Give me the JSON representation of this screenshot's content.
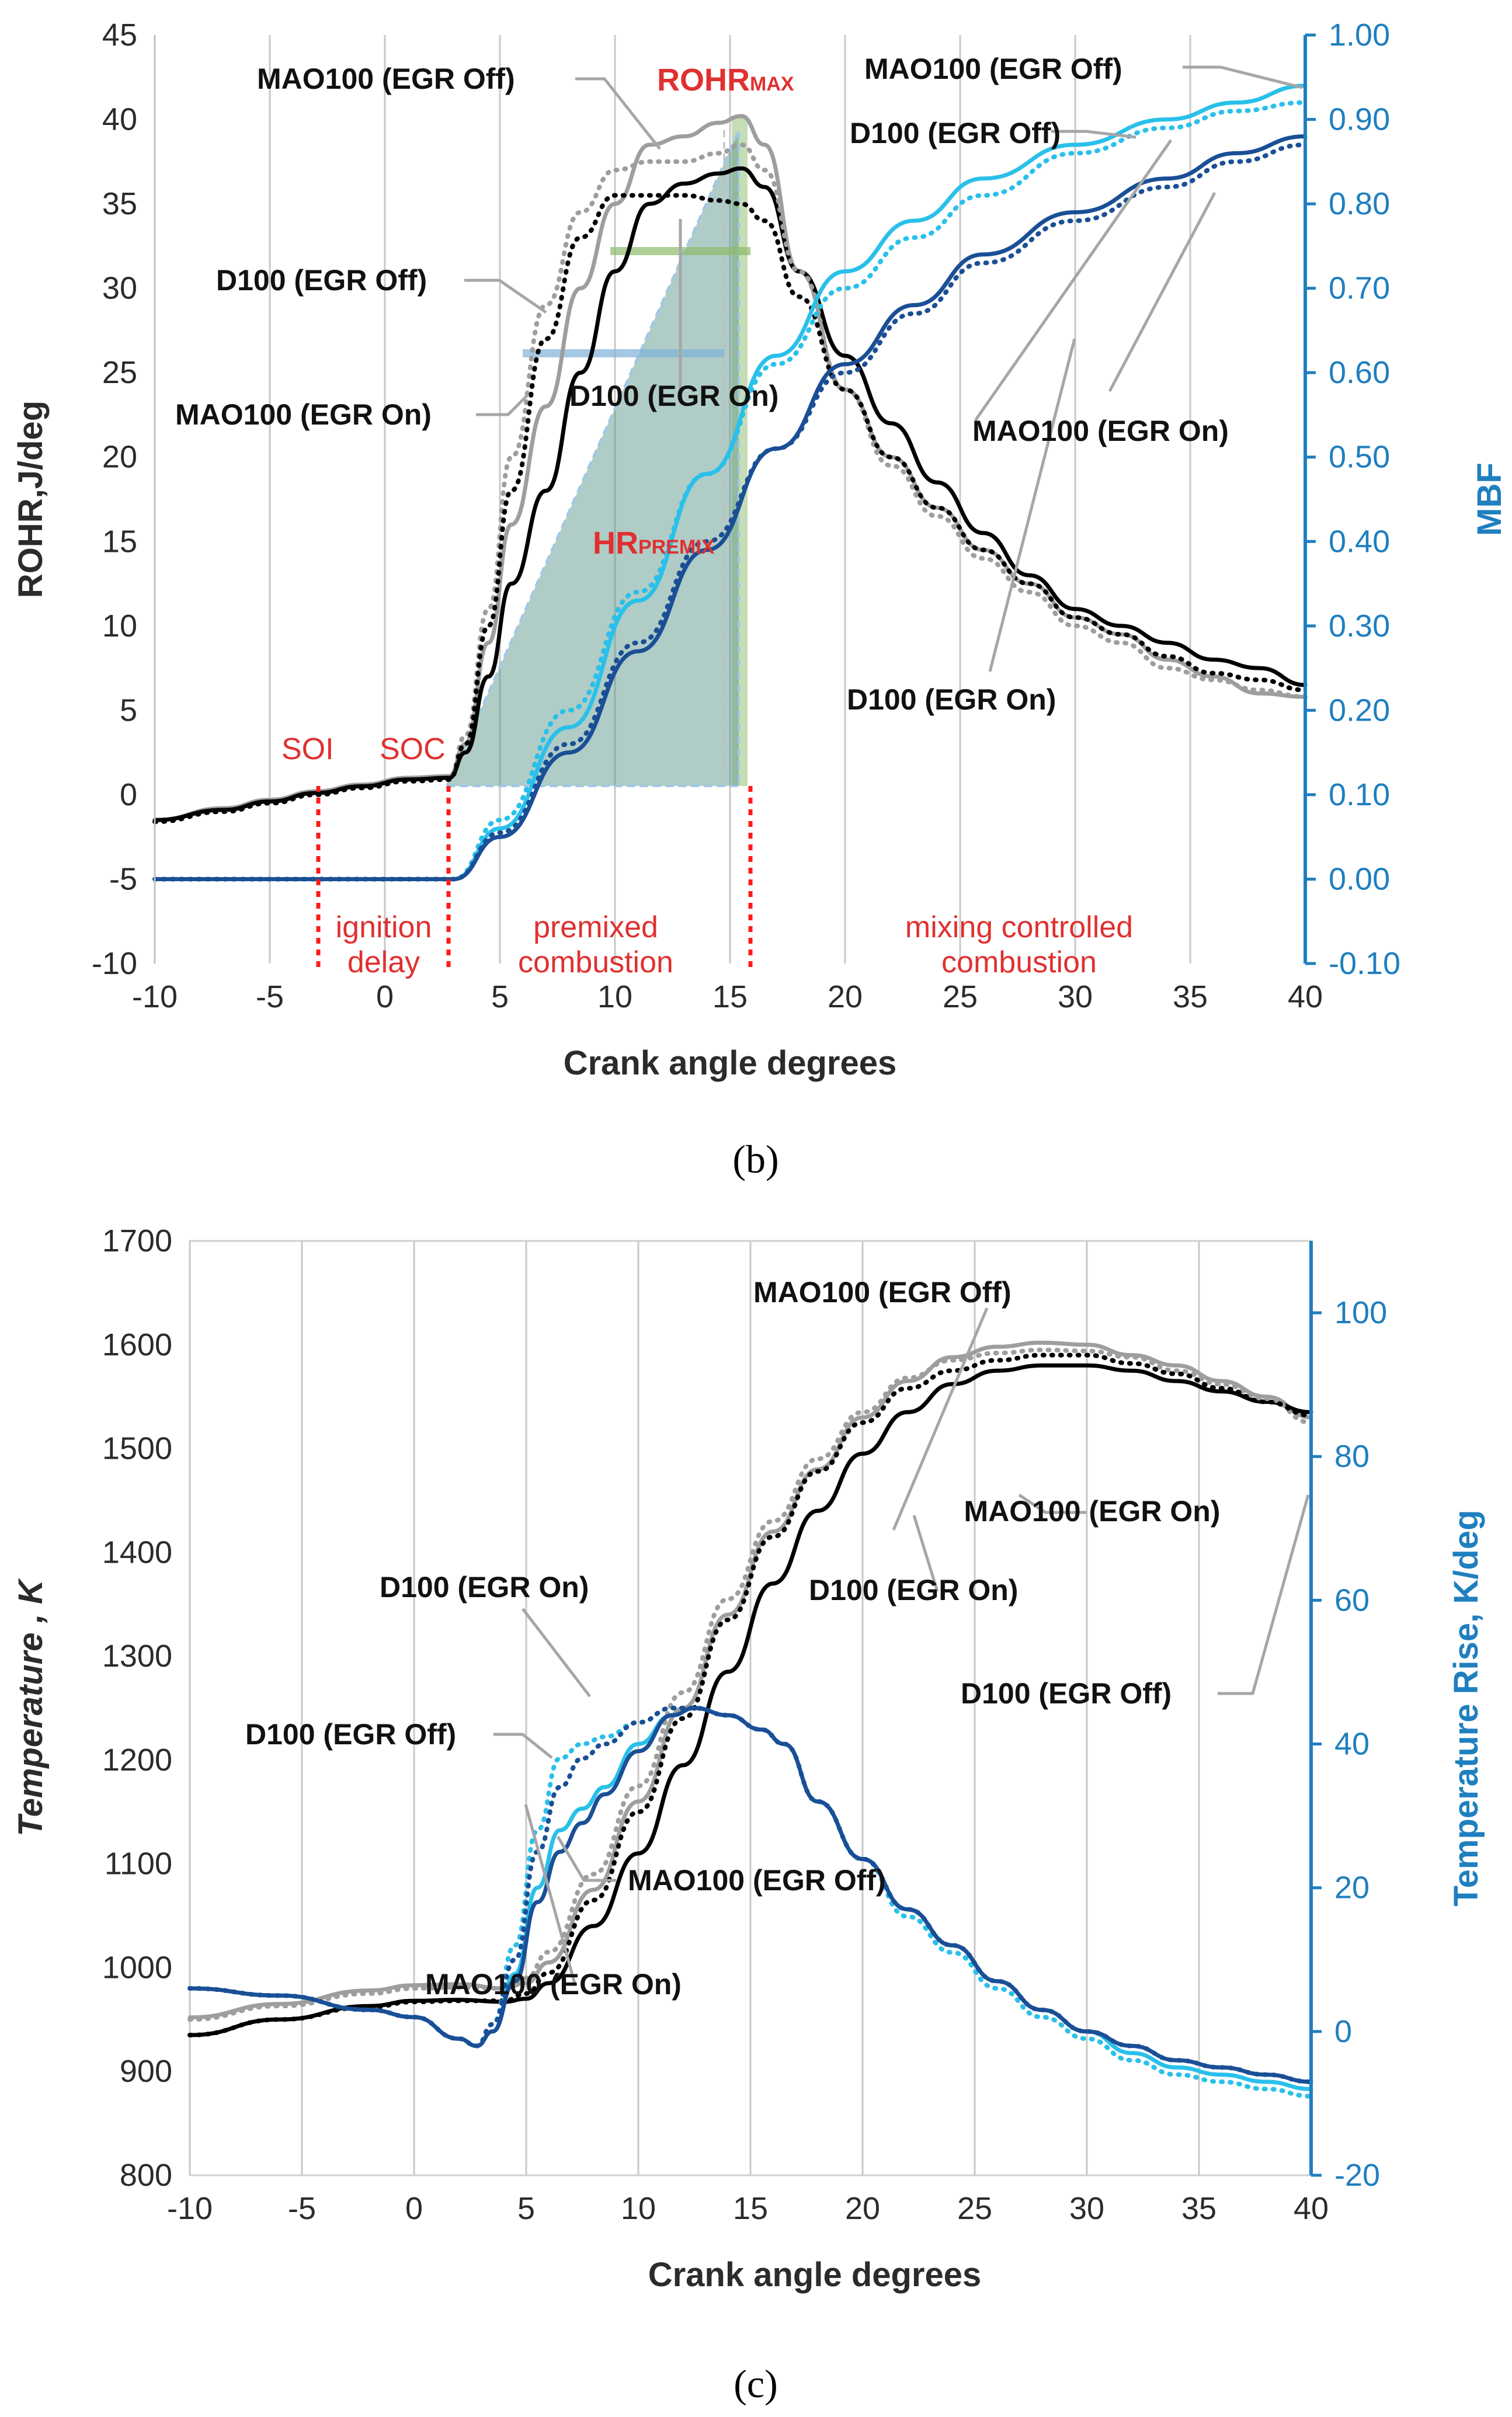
{
  "chart_data": [
    {
      "panel_label": "(b)",
      "type": "line",
      "xlabel": "Crank angle degrees",
      "ylabel": "ROHR,J/deg",
      "y2label": "MBF",
      "xlim": [
        -10,
        40
      ],
      "ylim": [
        -10,
        45
      ],
      "y2lim": [
        -0.1,
        1.0
      ],
      "x_ticks": [
        "-10",
        "-5",
        "0",
        "5",
        "10",
        "15",
        "20",
        "25",
        "30",
        "35",
        "40"
      ],
      "y_ticks": [
        "-10",
        "-5",
        "0",
        "5",
        "10",
        "15",
        "20",
        "25",
        "30",
        "35",
        "40",
        "45"
      ],
      "y2_ticks": [
        "-0.10",
        "0.00",
        "0.10",
        "0.20",
        "0.30",
        "0.40",
        "0.50",
        "0.60",
        "0.70",
        "0.80",
        "0.90",
        "1.00"
      ],
      "grid": "vertical",
      "series": [
        {
          "key": "rohr_mao_off",
          "axis": "y",
          "color": "#9e9e9e",
          "dash": "solid",
          "x": [
            -10,
            -7,
            -5,
            -3,
            -1,
            1,
            2.8,
            3.5,
            4.5,
            5.5,
            7,
            8.5,
            10,
            11.5,
            13,
            14.5,
            15.5,
            16.5,
            18,
            20,
            22,
            24,
            26,
            28,
            30,
            32,
            34,
            36,
            38,
            40
          ],
          "y": [
            -1.5,
            -0.8,
            -0.3,
            0.2,
            0.6,
            1.0,
            1.1,
            3.0,
            9,
            16,
            23,
            30,
            35,
            38.5,
            39,
            39.8,
            40.2,
            38.5,
            31,
            24,
            20,
            17,
            14.5,
            12.5,
            10.5,
            9.5,
            8,
            7,
            6,
            5.8
          ]
        },
        {
          "key": "rohr_d_off",
          "axis": "y",
          "color": "#000000",
          "dash": "solid",
          "x": [
            -10,
            -7,
            -5,
            -3,
            -1,
            1,
            2.8,
            3.5,
            4.5,
            5.5,
            7,
            8.5,
            10,
            11.5,
            13,
            14.5,
            15.5,
            16.5,
            18,
            20,
            22,
            24,
            26,
            28,
            30,
            32,
            34,
            36,
            38,
            40
          ],
          "y": [
            -1.5,
            -0.9,
            -0.4,
            0.1,
            0.5,
            0.9,
            1.0,
            2.5,
            7,
            12.5,
            18,
            25,
            31,
            35,
            36.2,
            36.8,
            37.1,
            36,
            31,
            26,
            22,
            18.5,
            15.5,
            13,
            11,
            10,
            9,
            8,
            7.5,
            6.5
          ]
        },
        {
          "key": "rohr_mao_on",
          "axis": "y",
          "color": "#9e9e9e",
          "dash": "dotted",
          "x": [
            -10,
            -7,
            -5,
            -3,
            -1,
            1,
            2.8,
            3.5,
            4.5,
            5.5,
            7,
            8.5,
            10,
            11.5,
            13,
            14.5,
            15.5,
            16.5,
            18,
            20,
            22,
            24,
            26,
            28,
            30,
            32,
            34,
            36,
            38,
            40
          ],
          "y": [
            -1.6,
            -1.0,
            -0.5,
            0.0,
            0.4,
            0.8,
            0.9,
            3.5,
            11,
            20,
            29,
            34.5,
            37,
            37.5,
            37.5,
            38,
            38.5,
            37,
            31,
            24,
            19.5,
            16.5,
            14,
            12,
            10,
            9,
            7.5,
            6.8,
            6.2,
            5.8
          ]
        },
        {
          "key": "rohr_d_on",
          "axis": "y",
          "color": "#000000",
          "dash": "dotted",
          "x": [
            -10,
            -7,
            -5,
            -3,
            -1,
            1,
            2.8,
            3.5,
            4.5,
            5.5,
            7,
            8.5,
            10,
            11.5,
            13,
            14.5,
            15.5,
            16.5,
            18,
            20,
            22,
            24,
            26,
            28,
            30,
            32,
            34,
            36,
            38,
            40
          ],
          "y": [
            -1.6,
            -1.0,
            -0.5,
            0.0,
            0.4,
            0.8,
            0.9,
            3,
            10,
            18,
            27,
            33,
            35.5,
            35.5,
            35.5,
            35.2,
            35,
            34,
            29.5,
            24,
            20,
            17,
            14.5,
            12.5,
            10.5,
            9.5,
            8.2,
            7.2,
            6.8,
            6.2
          ]
        },
        {
          "key": "mbf_mao_off",
          "axis": "y2",
          "color": "#29c0ea",
          "dash": "solid",
          "x": [
            -10,
            3,
            5,
            8,
            11,
            14,
            17,
            20,
            23,
            26,
            30,
            34,
            37,
            40
          ],
          "y": [
            0.0,
            0.0,
            0.06,
            0.18,
            0.33,
            0.48,
            0.62,
            0.72,
            0.78,
            0.83,
            0.87,
            0.9,
            0.92,
            0.94
          ]
        },
        {
          "key": "mbf_mao_on",
          "axis": "y2",
          "color": "#29c0ea",
          "dash": "dotted",
          "x": [
            -10,
            3,
            5,
            8,
            11,
            14,
            17,
            20,
            23,
            26,
            30,
            34,
            37,
            40
          ],
          "y": [
            0.0,
            0.0,
            0.07,
            0.2,
            0.34,
            0.48,
            0.61,
            0.7,
            0.76,
            0.81,
            0.86,
            0.89,
            0.91,
            0.92
          ]
        },
        {
          "key": "mbf_d_off",
          "axis": "y2",
          "color": "#1a4f96",
          "dash": "solid",
          "x": [
            -10,
            3,
            5,
            8,
            11,
            14,
            17,
            20,
            23,
            26,
            30,
            34,
            37,
            40
          ],
          "y": [
            0.0,
            0.0,
            0.05,
            0.15,
            0.27,
            0.39,
            0.51,
            0.61,
            0.68,
            0.74,
            0.79,
            0.83,
            0.86,
            0.88
          ]
        },
        {
          "key": "mbf_d_on",
          "axis": "y2",
          "color": "#1a4f96",
          "dash": "dotted",
          "x": [
            -10,
            3,
            5,
            8,
            11,
            14,
            17,
            20,
            23,
            26,
            30,
            34,
            37,
            40
          ],
          "y": [
            0.0,
            0.0,
            0.055,
            0.16,
            0.28,
            0.4,
            0.51,
            0.6,
            0.67,
            0.73,
            0.78,
            0.82,
            0.85,
            0.87
          ]
        }
      ],
      "callouts": {
        "mao_off_left": "MAO100 (EGR Off)",
        "rohr_max": "ROHR",
        "rohr_max_sub": "MAX",
        "mao_off_right": "MAO100 (EGR Off)",
        "d_off_right": "D100 (EGR Off)",
        "d_off_left": "D100 (EGR Off)",
        "d_on_mid": "D100 (EGR On)",
        "mao_on_left": "MAO100 (EGR On)",
        "mao_on_right": "MAO100 (EGR On)",
        "hr_premix": "HR",
        "hr_premix_sub": "PREMIX",
        "d_on_right": "D100 (EGR On)",
        "soi": "SOI",
        "soc": "SOC",
        "ignition_delay_1": "ignition",
        "ignition_delay_2": "delay",
        "premixed_1": "premixed",
        "premixed_2": "combustion",
        "mixing_1": "mixing controlled",
        "mixing_2": "combustion"
      }
    },
    {
      "panel_label": "(c)",
      "type": "line",
      "xlabel": "Crank angle degrees",
      "ylabel": "Temperature , K",
      "y2label": "Temperature Rise, K/deg",
      "xlim": [
        -10,
        40
      ],
      "ylim": [
        800,
        1700
      ],
      "y2lim": [
        -20,
        110
      ],
      "x_ticks": [
        "-10",
        "-5",
        "0",
        "5",
        "10",
        "15",
        "20",
        "25",
        "30",
        "35",
        "40"
      ],
      "y_ticks": [
        "800",
        "900",
        "1000",
        "1100",
        "1200",
        "1300",
        "1400",
        "1500",
        "1600",
        "1700"
      ],
      "y2_ticks": [
        "-20",
        "0",
        "20",
        "40",
        "60",
        "80",
        "100"
      ],
      "grid": "vertical",
      "series": [
        {
          "key": "temp_mao_off",
          "axis": "y",
          "color": "#9e9e9e",
          "dash": "solid",
          "x": [
            -10,
            -6,
            -2,
            0,
            2,
            4,
            5,
            6,
            8,
            10,
            12,
            14,
            16,
            18,
            20,
            22,
            24,
            26,
            28,
            30,
            32,
            34,
            36,
            38,
            40
          ],
          "y": [
            952,
            965,
            978,
            983,
            984,
            980,
            985,
            1005,
            1075,
            1160,
            1250,
            1340,
            1420,
            1480,
            1530,
            1565,
            1588,
            1598,
            1602,
            1600,
            1590,
            1580,
            1565,
            1550,
            1530
          ]
        },
        {
          "key": "temp_d_off",
          "axis": "y",
          "color": "#000000",
          "dash": "solid",
          "x": [
            -10,
            -6,
            -2,
            0,
            2,
            4,
            5,
            6,
            8,
            10,
            12,
            14,
            16,
            18,
            20,
            22,
            24,
            26,
            28,
            30,
            32,
            34,
            36,
            38,
            40
          ],
          "y": [
            935,
            950,
            963,
            968,
            969,
            967,
            970,
            985,
            1040,
            1110,
            1195,
            1285,
            1370,
            1440,
            1495,
            1535,
            1562,
            1575,
            1580,
            1580,
            1575,
            1565,
            1555,
            1545,
            1535
          ]
        },
        {
          "key": "temp_mao_on",
          "axis": "y",
          "color": "#9e9e9e",
          "dash": "dotted",
          "x": [
            -10,
            -6,
            -2,
            0,
            2,
            4,
            5,
            6,
            8,
            10,
            12,
            14,
            16,
            18,
            20,
            22,
            24,
            26,
            28,
            30,
            32,
            34,
            36,
            38,
            40
          ],
          "y": [
            950,
            963,
            975,
            980,
            981,
            980,
            990,
            1015,
            1090,
            1175,
            1265,
            1355,
            1430,
            1490,
            1535,
            1568,
            1585,
            1592,
            1595,
            1594,
            1588,
            1575,
            1562,
            1548,
            1525
          ]
        },
        {
          "key": "temp_d_on",
          "axis": "y",
          "color": "#000000",
          "dash": "dotted",
          "x": [
            -10,
            -6,
            -2,
            0,
            2,
            4,
            5,
            6,
            8,
            10,
            12,
            14,
            16,
            18,
            20,
            22,
            24,
            26,
            28,
            30,
            32,
            34,
            36,
            38,
            40
          ],
          "y": [
            935,
            950,
            962,
            967,
            968,
            968,
            975,
            995,
            1065,
            1150,
            1240,
            1335,
            1415,
            1478,
            1525,
            1558,
            1575,
            1585,
            1590,
            1590,
            1582,
            1572,
            1558,
            1545,
            1532
          ]
        },
        {
          "key": "rise_mao_off",
          "axis": "y2",
          "color": "#29c0ea",
          "dash": "solid",
          "x": [
            -10,
            -6,
            -2,
            0,
            2,
            2.8,
            3.5,
            4.5,
            5.5,
            6.5,
            7.5,
            8.5,
            10,
            11.5,
            12.5,
            14,
            15.5,
            16.5,
            18,
            20,
            22,
            24,
            26,
            28,
            30,
            32,
            34,
            36,
            38,
            40
          ],
          "y": [
            6,
            5,
            3,
            2,
            -1,
            -2,
            0,
            8,
            20,
            28,
            31,
            34,
            40,
            44,
            45,
            44,
            42,
            40,
            32,
            24,
            17,
            12,
            7,
            3,
            0,
            -3,
            -5,
            -6,
            -7,
            -8
          ]
        },
        {
          "key": "rise_mao_on",
          "axis": "y2",
          "color": "#29c0ea",
          "dash": "dotted",
          "x": [
            -10,
            -6,
            -2,
            0,
            2,
            2.8,
            3.5,
            4.5,
            5.5,
            6.5,
            7.5,
            8.5,
            10,
            11.5,
            12.5,
            14,
            15.5,
            16.5,
            18,
            20,
            22,
            24,
            26,
            28,
            30,
            32,
            34,
            36,
            38,
            40
          ],
          "y": [
            6,
            5,
            3,
            2,
            -1,
            -2,
            1,
            12,
            28,
            38,
            40,
            41,
            43,
            45,
            45,
            44,
            42,
            40,
            32,
            24,
            16,
            11,
            6,
            2,
            -1,
            -4,
            -6,
            -7,
            -8,
            -9
          ]
        },
        {
          "key": "rise_d_off",
          "axis": "y2",
          "color": "#1a4f96",
          "dash": "solid",
          "x": [
            -10,
            -6,
            -2,
            0,
            2,
            2.8,
            3.5,
            4.5,
            5.5,
            6.5,
            7.5,
            8.5,
            10,
            11.5,
            12.5,
            14,
            15.5,
            16.5,
            18,
            20,
            22,
            24,
            26,
            28,
            30,
            32,
            34,
            36,
            38,
            40
          ],
          "y": [
            6,
            5,
            3,
            2,
            -1,
            -2,
            0,
            7,
            18,
            25,
            29,
            33,
            39,
            44,
            45,
            44,
            42,
            40,
            32,
            24,
            17,
            12,
            7,
            3,
            0,
            -2,
            -4,
            -5,
            -6,
            -7
          ]
        },
        {
          "key": "rise_d_on",
          "axis": "y2",
          "color": "#1a4f96",
          "dash": "dotted",
          "x": [
            -10,
            -6,
            -2,
            0,
            2,
            2.8,
            3.5,
            4.5,
            5.5,
            6.5,
            7.5,
            8.5,
            10,
            11.5,
            12.5,
            14,
            15.5,
            16.5,
            18,
            20,
            22,
            24,
            26,
            28,
            30,
            32,
            34,
            36,
            38,
            40
          ],
          "y": [
            6,
            5,
            3,
            2,
            -1,
            -2,
            1,
            10,
            25,
            34,
            38,
            40,
            43,
            45,
            45,
            44,
            42,
            40,
            32,
            24,
            17,
            12,
            7,
            3,
            0,
            -2,
            -4,
            -5,
            -6,
            -7
          ]
        }
      ],
      "callouts": {
        "mao_off_top": "MAO100 (EGR Off)",
        "mao_on_right": "MAO100 (EGR On)",
        "d_on_right": "D100 (EGR On)",
        "d_off_right": "D100 (EGR Off)",
        "d_on_left": "D100 (EGR On)",
        "d_off_left": "D100 (EGR Off)",
        "mao_off_bottom": "MAO100 (EGR Off)",
        "mao_on_bottom": "MAO100 (EGR On)"
      }
    }
  ]
}
